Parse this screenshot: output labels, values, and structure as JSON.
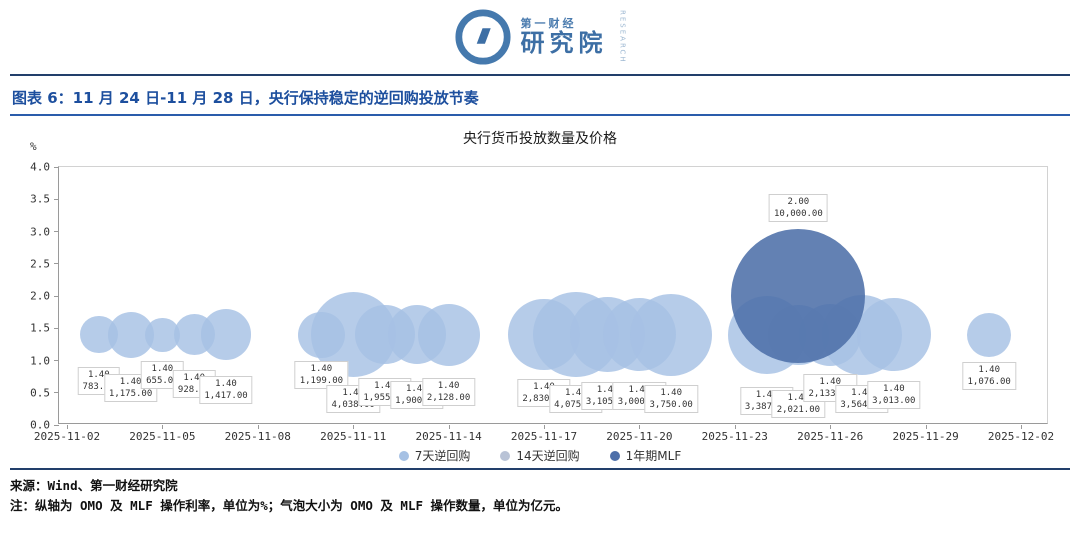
{
  "header": {
    "logo": {
      "brand_top": "第一财经",
      "brand_bottom": "研究院",
      "vertical_text": "RESEARCH"
    }
  },
  "figure": {
    "title": "图表 6：11 月 24 日-11 月 28 日，央行保持稳定的逆回购投放节奏"
  },
  "chart_data": {
    "type": "bubble",
    "title": "央行货币投放数量及价格",
    "y_unit": "%",
    "ylim": [
      0,
      4
    ],
    "y_ticks": [
      "4.0",
      "3.5",
      "3.0",
      "2.5",
      "2.0",
      "1.5",
      "1.0",
      "0.5",
      "0.0"
    ],
    "x_ticks": [
      "2025-11-02",
      "2025-11-05",
      "2025-11-08",
      "2025-11-11",
      "2025-11-14",
      "2025-11-17",
      "2025-11-20",
      "2025-11-23",
      "2025-11-26",
      "2025-11-29",
      "2025-12-02"
    ],
    "x_tick_step_days": 3,
    "x_range_days": 30,
    "x_start_date": "2025-11-02",
    "grid": false,
    "legend_position": "bottom",
    "bubble_scale": 0.67,
    "series": [
      {
        "name": "7天逆回购",
        "color": "#a6c1e4",
        "fill_opacity": 0.82,
        "points": [
          {
            "day": 1,
            "rate": 1.4,
            "amount": 783.0,
            "rate_label": "1.40",
            "amount_label": "783.00",
            "label_dy": 32
          },
          {
            "day": 2,
            "rate": 1.4,
            "amount": 1175.0,
            "rate_label": "1.40",
            "amount_label": "1,175.00",
            "label_dy": 39
          },
          {
            "day": 3,
            "rate": 1.4,
            "amount": 655.0,
            "rate_label": "1.40",
            "amount_label": "655.00",
            "label_dy": 26
          },
          {
            "day": 4,
            "rate": 1.4,
            "amount": 928.0,
            "rate_label": "1.40",
            "amount_label": "928.00",
            "label_dy": 35
          },
          {
            "day": 5,
            "rate": 1.4,
            "amount": 1417.0,
            "rate_label": "1.40",
            "amount_label": "1,417.00",
            "label_dy": 41
          },
          {
            "day": 8,
            "rate": 1.4,
            "amount": 1199.0,
            "rate_label": "1.40",
            "amount_label": "1,199.00",
            "label_dy": 26
          },
          {
            "day": 9,
            "rate": 1.4,
            "amount": 4038.0,
            "rate_label": "1.40",
            "amount_label": "4,038.00",
            "label_dy": 50
          },
          {
            "day": 10,
            "rate": 1.4,
            "amount": 1955.0,
            "rate_label": "1.40",
            "amount_label": "1,955.00",
            "label_dy": 43
          },
          {
            "day": 11,
            "rate": 1.4,
            "amount": 1900.0,
            "rate_label": "1.40",
            "amount_label": "1,900.00",
            "label_dy": 46
          },
          {
            "day": 12,
            "rate": 1.4,
            "amount": 2128.0,
            "rate_label": "1.40",
            "amount_label": "2,128.00",
            "label_dy": 43
          },
          {
            "day": 15,
            "rate": 1.4,
            "amount": 2830.0,
            "rate_label": "1.40",
            "amount_label": "2,830.00",
            "label_dy": 44
          },
          {
            "day": 16,
            "rate": 1.4,
            "amount": 4075.0,
            "rate_label": "1.40",
            "amount_label": "4,075.00",
            "label_dy": 50
          },
          {
            "day": 17,
            "rate": 1.4,
            "amount": 3105.0,
            "rate_label": "1.40",
            "amount_label": "3,105.00",
            "label_dy": 47
          },
          {
            "day": 18,
            "rate": 1.4,
            "amount": 3000.0,
            "rate_label": "1.40",
            "amount_label": "3,000.00",
            "label_dy": 47
          },
          {
            "day": 19,
            "rate": 1.4,
            "amount": 3750.0,
            "rate_label": "1.40",
            "amount_label": "3,750.00",
            "label_dy": 50
          },
          {
            "day": 22,
            "rate": 1.4,
            "amount": 3387.0,
            "rate_label": "1.40",
            "amount_label": "3,387.00",
            "label_dy": 52
          },
          {
            "day": 23,
            "rate": 1.4,
            "amount": 2021.0,
            "rate_label": "1.40",
            "amount_label": "2,021.00",
            "label_dy": 55
          },
          {
            "day": 24,
            "rate": 1.4,
            "amount": 2133.0,
            "rate_label": "1.40",
            "amount_label": "2,133.00",
            "label_dy": 39
          },
          {
            "day": 25,
            "rate": 1.4,
            "amount": 3564.0,
            "rate_label": "1.40",
            "amount_label": "3,564.00",
            "label_dy": 50
          },
          {
            "day": 26,
            "rate": 1.4,
            "amount": 3013.0,
            "rate_label": "1.40",
            "amount_label": "3,013.00",
            "label_dy": 46
          },
          {
            "day": 29,
            "rate": 1.4,
            "amount": 1076.0,
            "rate_label": "1.40",
            "amount_label": "1,076.00",
            "label_dy": 27
          }
        ]
      },
      {
        "name": "14天逆回购",
        "color": "#b9c3d6",
        "fill_opacity": 0.82,
        "points": []
      },
      {
        "name": "1年期MLF",
        "color": "#4d6fa9",
        "fill_opacity": 0.88,
        "points": [
          {
            "day": 23,
            "rate": 2.0,
            "amount": 10000.0,
            "rate_label": "2.00",
            "amount_label": "10,000.00",
            "label_above": true
          }
        ]
      }
    ]
  },
  "footer": {
    "source": "来源：Wind、第一财经研究院",
    "note": "注：纵轴为 OMO 及 MLF 操作利率，单位为%；气泡大小为 OMO 及 MLF 操作数量，单位为亿元。"
  },
  "theme": {
    "title_blue": "#1d4f9e",
    "rule_navy": "#223f6b",
    "bubble_light_blue": "#a6c1e4",
    "bubble_gray_blue": "#b9c3d6",
    "bubble_dark_blue": "#4d6fa9"
  }
}
